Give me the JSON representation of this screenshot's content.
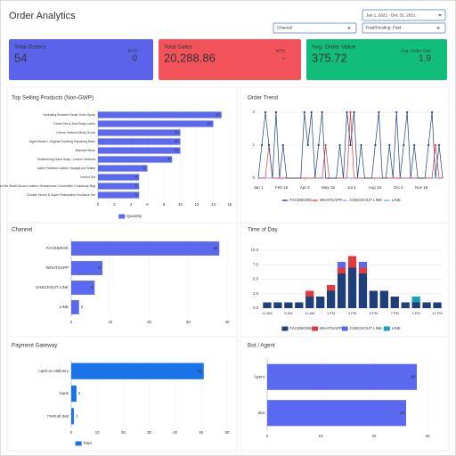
{
  "header": {
    "title": "Order Analytics"
  },
  "filters": {
    "date_range": "Jan 1, 2021 - Dec 31, 2021",
    "channel": "Channel",
    "payment_status": "Paid/Pending: Paid"
  },
  "kpis": [
    {
      "label": "Total Orders",
      "value": "54",
      "sub_label": "MTD",
      "sub_value": "0",
      "color": "#5a63ea"
    },
    {
      "label": "Total Sales",
      "value": "20,288.86",
      "sub_label": "MTD",
      "sub_value": "-",
      "color": "#f2535b"
    },
    {
      "label": "Avg. Order Value",
      "value": "375.72",
      "sub_label": "Avg. Order Size",
      "sub_value": "1.9",
      "color": "#12bd7b"
    }
  ],
  "chart_data": [
    {
      "type": "hbar",
      "title": "Top Selling Products (Non-GWP)",
      "categories": [
        "Hydrating Brownie Facial Toner Spray",
        "Green Tea & Aloe Body Lotion",
        "Lemon Verbena Body Scrub",
        "Night Hearth I Original Soothing Repairing Balm",
        "Branded Shoe",
        "Moisturizing Hand Soap - Lemon Verbena",
        "Adele Pebbled Leather Straight-toe Wallet",
        "Lemon Set",
        "Jet Set Small Woven Leather Smartphone Convertible Crossbody Bag",
        "Double Serum & Super Restorative Exclusive Set"
      ],
      "series": [
        {
          "name": "Quantity",
          "color": "#5b68f0",
          "values": [
            15,
            14,
            10,
            10,
            10,
            9,
            6,
            5,
            5,
            5
          ]
        }
      ],
      "xlim": [
        0,
        16
      ],
      "xticks": [
        0,
        2,
        4,
        6,
        8,
        10,
        12,
        14,
        16
      ],
      "grid": true
    },
    {
      "type": "line",
      "title": "Order Trend",
      "x": [
        0,
        7,
        14,
        21,
        28,
        35,
        42,
        49,
        56,
        63,
        70,
        77,
        84,
        91,
        98,
        105,
        112,
        119,
        126,
        133,
        140,
        147,
        154,
        161,
        168,
        175,
        182,
        189,
        196,
        203,
        210,
        217,
        224,
        231,
        238,
        245,
        252,
        259,
        266,
        273,
        280,
        287,
        294,
        301,
        308,
        315,
        322,
        329,
        336,
        343,
        350,
        357,
        364
      ],
      "series": [
        {
          "name": "FACEBOOK",
          "color": "#1f3f7a",
          "values": [
            0,
            1,
            2,
            1,
            0,
            2,
            0,
            1,
            0,
            0,
            0,
            0,
            0,
            2,
            1,
            2,
            0,
            1,
            2,
            0,
            0,
            0,
            0,
            1,
            0,
            2,
            1,
            2,
            0,
            1,
            0,
            0,
            0,
            1,
            2,
            0,
            0,
            1,
            0,
            2,
            0,
            1,
            2,
            0,
            1,
            0,
            0,
            0,
            1,
            2,
            0,
            1,
            0
          ]
        },
        {
          "name": "WHATSAPP",
          "color": "#e0393e",
          "values": [
            0,
            0,
            0,
            1,
            0,
            0,
            0,
            0,
            0,
            0,
            0,
            0,
            0,
            0,
            0,
            0,
            0,
            0,
            0,
            1,
            0,
            0,
            0,
            0,
            0,
            0,
            2,
            0,
            0,
            0,
            0,
            0,
            0,
            0,
            0,
            0,
            0,
            0,
            0,
            0,
            0,
            0,
            0,
            0,
            0,
            0,
            0,
            0,
            0,
            0,
            1,
            0,
            0
          ]
        },
        {
          "name": "CHECKOUT LINK",
          "color": "#9aa0f5",
          "values": [
            0,
            0,
            0,
            0,
            0,
            0,
            0,
            0,
            0,
            0,
            0,
            0,
            0,
            0,
            0,
            0,
            0,
            0,
            0,
            0,
            0,
            0,
            0,
            0,
            0,
            0,
            0,
            0,
            0,
            0,
            0,
            0,
            0,
            0,
            0,
            0,
            0,
            0,
            0,
            0,
            0,
            0,
            0,
            0,
            0,
            0,
            0,
            0,
            0,
            0,
            0,
            0,
            0
          ]
        },
        {
          "name": "LINE",
          "color": "#4fb6c6",
          "values": [
            0,
            0,
            0,
            0,
            0,
            0,
            0,
            0,
            0,
            0,
            0,
            0,
            0,
            0,
            0,
            0,
            0,
            0,
            0,
            0,
            0,
            0,
            0,
            0,
            0,
            0,
            0,
            0,
            0,
            0,
            0,
            0,
            0,
            0,
            0,
            0,
            0,
            0,
            0,
            0,
            0,
            0,
            0,
            0,
            0,
            0,
            0,
            0,
            0,
            0,
            0,
            0,
            0
          ]
        }
      ],
      "xlim": [
        0,
        364
      ],
      "xticks": [
        {
          "value": 0,
          "label": "Jan 1"
        },
        {
          "value": 46,
          "label": "Feb 16"
        },
        {
          "value": 92,
          "label": "Apr 3"
        },
        {
          "value": 138,
          "label": "May 19"
        },
        {
          "value": 184,
          "label": "Jul 4"
        },
        {
          "value": 230,
          "label": "Aug 19"
        },
        {
          "value": 276,
          "label": "Oct 4"
        },
        {
          "value": 322,
          "label": "Nov 19"
        }
      ],
      "ylim": [
        0,
        2
      ],
      "yticks": [
        0,
        1,
        2
      ],
      "grid": true
    },
    {
      "type": "hbar",
      "title": "Channel",
      "categories": [
        "FACEBOOK",
        "WHATSAPP",
        "CHECKOUT LINK",
        "LINE"
      ],
      "values": [
        38,
        8,
        6,
        2
      ],
      "color": "#5b68f0",
      "xlim": [
        0,
        40
      ],
      "xticks": [
        0,
        10,
        20,
        30,
        40
      ],
      "grid": true
    },
    {
      "type": "stacked-bar",
      "title": "Time of Day",
      "categories": [
        "12 AM",
        null,
        "9 AM",
        null,
        "11 AM",
        null,
        "1 PM",
        null,
        "3 PM",
        null,
        "5 PM",
        null,
        "7 PM",
        null,
        "9 PM",
        null,
        "11 PM"
      ],
      "series": [
        {
          "name": "FACEBOOK",
          "color": "#1f3f7a",
          "values": [
            1,
            1,
            1,
            1,
            2,
            2,
            3,
            6,
            7,
            6,
            3,
            3,
            2,
            1,
            1,
            1,
            1
          ]
        },
        {
          "name": "WHATSAPP",
          "color": "#e0393e",
          "values": [
            0,
            0,
            0,
            0,
            1,
            0,
            1,
            1,
            2,
            1,
            0,
            0,
            0,
            0,
            0,
            0,
            0
          ]
        },
        {
          "name": "CHECKOUT LINK",
          "color": "#5b68f0",
          "values": [
            0,
            0,
            0,
            0,
            0,
            0,
            0,
            1,
            0,
            1,
            0,
            0,
            0,
            0,
            0,
            0,
            0
          ]
        },
        {
          "name": "LINE",
          "color": "#17a2b8",
          "values": [
            0,
            0,
            0,
            0,
            0,
            0,
            0,
            0,
            0,
            0,
            0,
            0,
            0,
            0,
            1,
            0,
            0
          ]
        }
      ],
      "ylim": [
        0,
        10
      ],
      "yticks": [
        {
          "value": 0,
          "label": "0.0"
        },
        2.5,
        {
          "value": 5,
          "label": "5.0"
        },
        7.5,
        {
          "value": 10,
          "label": "10.0"
        }
      ],
      "grid": true
    },
    {
      "type": "hbar",
      "title": "Payment Gateway",
      "categories": [
        "cash-on-delivery",
        "bank",
        "manual pay"
      ],
      "series": [
        {
          "name": "Paid",
          "color": "#1a73e8",
          "values": [
            51,
            2,
            1
          ]
        }
      ],
      "xlim": [
        0,
        60
      ],
      "xticks": [
        0,
        10,
        20,
        30,
        40,
        50,
        60
      ],
      "grid": true
    },
    {
      "type": "hbar",
      "title": "Bot / Agent",
      "categories": [
        "Agent",
        "Bot"
      ],
      "values": [
        28,
        26
      ],
      "color": "#5b68f0",
      "xlim": [
        0,
        30
      ],
      "xticks": [
        0,
        10,
        20,
        30
      ],
      "grid": true
    }
  ]
}
